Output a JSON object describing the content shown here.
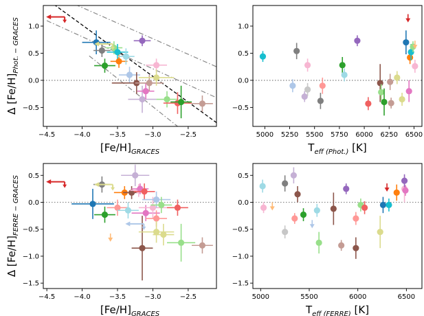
{
  "colors": {
    "blue": "#1f77b4",
    "lightblue": "#aec7e8",
    "orange": "#ff7f0e",
    "peach": "#ffbb78",
    "green": "#2ca02c",
    "lightgreen": "#98df8a",
    "red": "#d62728",
    "salmon": "#ff9896",
    "purple": "#9467bd",
    "lavender": "#c5b0d5",
    "brown": "#8c564b",
    "tan": "#c49c94",
    "pink": "#e377c2",
    "lightpink": "#f7b6d2",
    "gray": "#7f7f7f",
    "lightgray": "#c7c7c7",
    "olive": "#bcbd22",
    "khaki": "#dbdb8d",
    "cyan": "#17becf",
    "lightcyan": "#9edae5",
    "coral": "#f06060",
    "dashed_line": "#000000",
    "dashdot_line": "#888888",
    "zero_line": "#888888"
  },
  "chart_data": [
    {
      "id": "p1",
      "type": "scatter",
      "xlabel": {
        "main": "[Fe/H]",
        "sub": "GRACES"
      },
      "ylabel": {
        "main": "Δ [Fe/H]",
        "sub": "Phot. − GRACES"
      },
      "xlim": [
        -4.55,
        -2.1
      ],
      "ylim": [
        -0.85,
        1.38
      ],
      "xticks": [
        -4.5,
        -4.0,
        -3.5,
        -3.0,
        -2.5
      ],
      "xticklabels": [
        "−4.5",
        "−4.0",
        "−3.5",
        "−3.0",
        "−2.5"
      ],
      "yticks": [
        -0.5,
        0.0,
        0.5,
        1.0
      ],
      "yticklabels": [
        "−0.5",
        "0.0",
        "0.5",
        "1.0"
      ],
      "zero_line": true,
      "lines": [
        {
          "style": "dashed",
          "color": "dashed_line",
          "x1": -4.4,
          "y1": 1.4,
          "x2": -2.1,
          "y2": -0.78
        },
        {
          "style": "dashdot",
          "color": "dashdot_line",
          "x1": -4.5,
          "y1": 1.1,
          "x2": -2.1,
          "y2": -0.32
        },
        {
          "style": "dashdot",
          "color": "dashdot_line",
          "x1": -4.1,
          "y1": 1.4,
          "x2": -2.1,
          "y2": 0.25
        },
        {
          "style": "dashdot",
          "color": "dashdot_line",
          "x1": -3.9,
          "y1": 0.45,
          "x2": -2.65,
          "y2": -0.85
        }
      ],
      "points": [
        {
          "x": -3.8,
          "y": 0.7,
          "xerr": 0.2,
          "yerr": 0.22,
          "c": "blue"
        },
        {
          "x": -3.72,
          "y": 0.55,
          "xerr": 0.12,
          "yerr": 0.12,
          "c": "gray"
        },
        {
          "x": -3.68,
          "y": 0.27,
          "xerr": 0.15,
          "yerr": 0.13,
          "c": "green"
        },
        {
          "x": -3.55,
          "y": 0.6,
          "xerr": 0.12,
          "yerr": 0.12,
          "c": "lightgreen"
        },
        {
          "x": -3.5,
          "y": 0.52,
          "xerr": 0.15,
          "yerr": 0.15,
          "c": "cyan"
        },
        {
          "x": -3.48,
          "y": 0.35,
          "xerr": 0.12,
          "yerr": 0.12,
          "c": "orange"
        },
        {
          "x": -3.38,
          "y": 0.44,
          "xerr": 0.12,
          "yerr": 0.15,
          "c": "lightcyan"
        },
        {
          "x": -3.33,
          "y": 0.1,
          "xerr": 0.15,
          "yerr": 0.15,
          "c": "lightblue"
        },
        {
          "x": -3.23,
          "y": -0.05,
          "xerr": 0.35,
          "yerr": 0.2,
          "c": "brown"
        },
        {
          "x": -3.15,
          "y": 0.73,
          "xerr": 0.12,
          "yerr": 0.1,
          "c": "purple"
        },
        {
          "x": -3.15,
          "y": -0.35,
          "xerr": 0.2,
          "yerr": 0.25,
          "c": "lavender"
        },
        {
          "x": -3.1,
          "y": -0.2,
          "xerr": 0.12,
          "yerr": 0.15,
          "c": "pink"
        },
        {
          "x": -3.05,
          "y": -0.05,
          "xerr": 0.2,
          "yerr": 0.15,
          "c": "tan"
        },
        {
          "x": -2.95,
          "y": 0.28,
          "xerr": 0.15,
          "yerr": 0.12,
          "c": "lightpink"
        },
        {
          "x": -2.95,
          "y": 0.05,
          "xerr": 0.25,
          "yerr": 0.15,
          "c": "khaki"
        },
        {
          "x": -2.8,
          "y": -0.35,
          "xerr": 0.15,
          "yerr": 0.15,
          "c": "lightgreen"
        },
        {
          "x": -2.65,
          "y": -0.42,
          "xerr": 0.2,
          "yerr": 0.2,
          "c": "coral"
        },
        {
          "x": -2.6,
          "y": -0.4,
          "xerr": 0.15,
          "yerr": 0.3,
          "c": "green"
        },
        {
          "x": -2.3,
          "y": -0.43,
          "xerr": 0.15,
          "yerr": 0.15,
          "c": "tan"
        }
      ],
      "limits": [
        {
          "x": -4.5,
          "y": 1.17,
          "dir": "left",
          "c": "red"
        },
        {
          "x": -3.82,
          "y": 0.67,
          "dir": "left",
          "c": "khaki"
        }
      ]
    },
    {
      "id": "p2",
      "type": "scatter",
      "xlabel": {
        "main": "T",
        "sub": "eff (Phot.)",
        "after": " [K]"
      },
      "ylabel": null,
      "xlim": [
        4880,
        6580
      ],
      "ylim": [
        -0.85,
        1.38
      ],
      "xticks": [
        5000,
        5250,
        5500,
        5750,
        6000,
        6250,
        6500
      ],
      "xticklabels": [
        "5000",
        "5250",
        "5500",
        "5750",
        "6000",
        "6250",
        "6500"
      ],
      "yticks": [
        -0.5,
        0.0,
        0.5,
        1.0
      ],
      "yticklabels": [
        "−0.5",
        "0.0",
        "0.5",
        "1.0"
      ],
      "zero_line": true,
      "lines": [],
      "points": [
        {
          "x": 4980,
          "y": 0.44,
          "xerr": 0,
          "yerr": 0.1,
          "c": "cyan"
        },
        {
          "x": 5280,
          "y": -0.1,
          "xerr": 0,
          "yerr": 0.12,
          "c": "lightblue"
        },
        {
          "x": 5320,
          "y": 0.54,
          "xerr": 0,
          "yerr": 0.15,
          "c": "gray"
        },
        {
          "x": 5400,
          "y": -0.3,
          "xerr": 0,
          "yerr": 0.1,
          "c": "lavender"
        },
        {
          "x": 5430,
          "y": 0.28,
          "xerr": 0,
          "yerr": 0.12,
          "c": "lightpink"
        },
        {
          "x": 5430,
          "y": -0.17,
          "xerr": 0,
          "yerr": 0.12,
          "c": "lightgray"
        },
        {
          "x": 5560,
          "y": -0.38,
          "xerr": 0,
          "yerr": 0.15,
          "c": "gray"
        },
        {
          "x": 5580,
          "y": -0.1,
          "xerr": 0,
          "yerr": 0.15,
          "c": "salmon"
        },
        {
          "x": 5780,
          "y": 0.28,
          "xerr": 0,
          "yerr": 0.15,
          "c": "green"
        },
        {
          "x": 5800,
          "y": 0.1,
          "xerr": 0,
          "yerr": 0.12,
          "c": "lightcyan"
        },
        {
          "x": 5930,
          "y": 0.73,
          "xerr": 0,
          "yerr": 0.1,
          "c": "purple"
        },
        {
          "x": 6040,
          "y": -0.43,
          "xerr": 0,
          "yerr": 0.12,
          "c": "coral"
        },
        {
          "x": 6160,
          "y": -0.05,
          "xerr": 0,
          "yerr": 0.35,
          "c": "brown"
        },
        {
          "x": 6170,
          "y": -0.22,
          "xerr": 0,
          "yerr": 0.15,
          "c": "lightgreen"
        },
        {
          "x": 6200,
          "y": -0.4,
          "xerr": 0,
          "yerr": 0.25,
          "c": "green"
        },
        {
          "x": 6260,
          "y": -0.03,
          "xerr": 0,
          "yerr": 0.15,
          "c": "tan"
        },
        {
          "x": 6270,
          "y": -0.42,
          "xerr": 0,
          "yerr": 0.1,
          "c": "tan"
        },
        {
          "x": 6330,
          "y": 0.05,
          "xerr": 0,
          "yerr": 0.12,
          "c": "khaki"
        },
        {
          "x": 6380,
          "y": -0.35,
          "xerr": 0,
          "yerr": 0.12,
          "c": "khaki"
        },
        {
          "x": 6420,
          "y": 0.7,
          "xerr": 0,
          "yerr": 0.22,
          "c": "blue"
        },
        {
          "x": 6450,
          "y": -0.2,
          "xerr": 0,
          "yerr": 0.2,
          "c": "pink"
        },
        {
          "x": 6460,
          "y": 0.42,
          "xerr": 0,
          "yerr": 0.12,
          "c": "orange"
        },
        {
          "x": 6470,
          "y": 0.52,
          "xerr": 0,
          "yerr": 0.15,
          "c": "cyan"
        },
        {
          "x": 6490,
          "y": 0.62,
          "xerr": 0,
          "yerr": 0.1,
          "c": "lightgreen"
        },
        {
          "x": 6510,
          "y": 0.26,
          "xerr": 0,
          "yerr": 0.12,
          "c": "lightpink"
        }
      ],
      "limits": [
        {
          "x": 6440,
          "y": 1.17,
          "dir": "down",
          "c": "red"
        },
        {
          "x": 6510,
          "y": 0.68,
          "dir": "down",
          "c": "peach"
        }
      ]
    },
    {
      "id": "p3",
      "type": "scatter",
      "xlabel": {
        "main": "[Fe/H]",
        "sub": "GRACES"
      },
      "ylabel": {
        "main": "Δ [Fe/H]",
        "sub": "FERRE − GRACES"
      },
      "xlim": [
        -4.55,
        -2.1
      ],
      "ylim": [
        -1.6,
        0.72
      ],
      "xticks": [
        -4.5,
        -4.0,
        -3.5,
        -3.0,
        -2.5
      ],
      "xticklabels": [
        "−4.5",
        "−4.0",
        "−3.5",
        "−3.0",
        "−2.5"
      ],
      "yticks": [
        -1.5,
        -1.0,
        -0.5,
        0.0,
        0.5
      ],
      "yticklabels": [
        "−1.5",
        "−1.0",
        "−0.5",
        "0.0",
        "0.5"
      ],
      "zero_line": true,
      "lines": [],
      "points": [
        {
          "x": -3.85,
          "y": -0.03,
          "xerr": 0.3,
          "yerr": 0.28,
          "c": "blue"
        },
        {
          "x": -3.72,
          "y": 0.33,
          "xerr": 0.12,
          "yerr": 0.15,
          "c": "gray"
        },
        {
          "x": -3.68,
          "y": -0.23,
          "xerr": 0.15,
          "yerr": 0.15,
          "c": "green"
        },
        {
          "x": -3.5,
          "y": -0.1,
          "xerr": 0.15,
          "yerr": 0.15,
          "c": "salmon"
        },
        {
          "x": -3.4,
          "y": 0.18,
          "xerr": 0.15,
          "yerr": 0.12,
          "c": "orange"
        },
        {
          "x": -3.35,
          "y": -0.15,
          "xerr": 0.15,
          "yerr": 0.15,
          "c": "lightcyan"
        },
        {
          "x": -3.3,
          "y": 0.18,
          "xerr": 0.12,
          "yerr": 0.12,
          "c": "brown"
        },
        {
          "x": -3.25,
          "y": 0.5,
          "xerr": 0.2,
          "yerr": 0.2,
          "c": "lavender"
        },
        {
          "x": -3.2,
          "y": 0.22,
          "xerr": 0.12,
          "yerr": 0.12,
          "c": "lightpink"
        },
        {
          "x": -3.18,
          "y": 0.25,
          "xerr": 0.12,
          "yerr": 0.1,
          "c": "pink"
        },
        {
          "x": -3.15,
          "y": -0.85,
          "xerr": 0.15,
          "yerr": 0.6,
          "c": "brown"
        },
        {
          "x": -3.12,
          "y": 0.2,
          "xerr": 0.15,
          "yerr": 0.15,
          "c": "coral"
        },
        {
          "x": -3.1,
          "y": -0.2,
          "xerr": 0.2,
          "yerr": 0.15,
          "c": "pink"
        },
        {
          "x": -3.0,
          "y": -0.1,
          "xerr": 0.2,
          "yerr": 0.2,
          "c": "lightpink"
        },
        {
          "x": -2.95,
          "y": -0.3,
          "xerr": 0.15,
          "yerr": 0.15,
          "c": "salmon"
        },
        {
          "x": -2.95,
          "y": 0.05,
          "xerr": 0.2,
          "yerr": 0.15,
          "c": "lightblue"
        },
        {
          "x": -2.95,
          "y": -0.55,
          "xerr": 0.25,
          "yerr": 0.2,
          "c": "khaki"
        },
        {
          "x": -2.88,
          "y": -0.05,
          "xerr": 0.15,
          "yerr": 0.15,
          "c": "lightgreen"
        },
        {
          "x": -2.85,
          "y": -0.6,
          "xerr": 0.15,
          "yerr": 0.2,
          "c": "khaki"
        },
        {
          "x": -2.65,
          "y": -0.1,
          "xerr": 0.15,
          "yerr": 0.15,
          "c": "coral"
        },
        {
          "x": -2.6,
          "y": -0.75,
          "xerr": 0.2,
          "yerr": 0.35,
          "c": "lightgreen"
        },
        {
          "x": -2.3,
          "y": -0.8,
          "xerr": 0.15,
          "yerr": 0.15,
          "c": "tan"
        }
      ],
      "limits": [
        {
          "x": -4.5,
          "y": 0.38,
          "dir": "left",
          "c": "red"
        },
        {
          "x": -3.82,
          "y": 0.33,
          "dir": "left",
          "c": "khaki"
        },
        {
          "x": -3.6,
          "y": -0.63,
          "dir": "down",
          "c": "peach"
        },
        {
          "x": -3.38,
          "y": -0.4,
          "dir": "left",
          "c": "lightblue"
        }
      ]
    },
    {
      "id": "p4",
      "type": "scatter",
      "xlabel": {
        "main": "T",
        "sub": "eff (FERRE)",
        "after": " [K]"
      },
      "ylabel": null,
      "xlim": [
        4920,
        6660
      ],
      "ylim": [
        -1.6,
        0.72
      ],
      "xticks": [
        5000,
        5500,
        6000,
        6500
      ],
      "xticklabels": [
        "5000",
        "5500",
        "6000",
        "6500"
      ],
      "yticks": [
        -1.5,
        -1.0,
        -0.5,
        0.0,
        0.5
      ],
      "yticklabels": [
        "−1.5",
        "−1.0",
        "−0.5",
        "0.0",
        "0.5"
      ],
      "zero_line": true,
      "lines": [],
      "points": [
        {
          "x": 5020,
          "y": 0.3,
          "xerr": 0.0,
          "yerr": 0.12,
          "c": "lightcyan"
        },
        {
          "x": 5030,
          "y": -0.1,
          "xerr": 0.0,
          "yerr": 0.1,
          "c": "lightpink"
        },
        {
          "x": 5250,
          "y": 0.35,
          "xerr": 0.0,
          "yerr": 0.15,
          "c": "gray"
        },
        {
          "x": 5250,
          "y": -0.55,
          "xerr": 0.0,
          "yerr": 0.12,
          "c": "lightgray"
        },
        {
          "x": 5340,
          "y": 0.5,
          "xerr": 0.0,
          "yerr": 0.15,
          "c": "lavender"
        },
        {
          "x": 5350,
          "y": -0.3,
          "xerr": 0.0,
          "yerr": 0.1,
          "c": "salmon"
        },
        {
          "x": 5380,
          "y": 0.15,
          "xerr": 0.0,
          "yerr": 0.15,
          "c": "brown"
        },
        {
          "x": 5440,
          "y": -0.23,
          "xerr": 0.0,
          "yerr": 0.12,
          "c": "green"
        },
        {
          "x": 5580,
          "y": -0.15,
          "xerr": 0.0,
          "yerr": 0.12,
          "c": "lightcyan"
        },
        {
          "x": 5600,
          "y": -0.75,
          "xerr": 0.0,
          "yerr": 0.2,
          "c": "lightgreen"
        },
        {
          "x": 5750,
          "y": -0.12,
          "xerr": 0.0,
          "yerr": 0.3,
          "c": "brown"
        },
        {
          "x": 5830,
          "y": -0.8,
          "xerr": 0.0,
          "yerr": 0.1,
          "c": "tan"
        },
        {
          "x": 5880,
          "y": 0.25,
          "xerr": 0.0,
          "yerr": 0.1,
          "c": "purple"
        },
        {
          "x": 5980,
          "y": -0.85,
          "xerr": 0.0,
          "yerr": 0.2,
          "c": "brown"
        },
        {
          "x": 5980,
          "y": -0.3,
          "xerr": 0.0,
          "yerr": 0.12,
          "c": "salmon"
        },
        {
          "x": 6030,
          "y": -0.05,
          "xerr": 0.0,
          "yerr": 0.12,
          "c": "lightgreen"
        },
        {
          "x": 6070,
          "y": -0.1,
          "xerr": 0.0,
          "yerr": 0.12,
          "c": "coral"
        },
        {
          "x": 6230,
          "y": -0.55,
          "xerr": 0.0,
          "yerr": 0.3,
          "c": "khaki"
        },
        {
          "x": 6260,
          "y": -0.05,
          "xerr": 0.0,
          "yerr": 0.15,
          "c": "blue"
        },
        {
          "x": 6320,
          "y": -0.05,
          "xerr": 0.0,
          "yerr": 0.12,
          "c": "cyan"
        },
        {
          "x": 6400,
          "y": 0.18,
          "xerr": 0.0,
          "yerr": 0.15,
          "c": "orange"
        },
        {
          "x": 6480,
          "y": 0.25,
          "xerr": 0.0,
          "yerr": 0.25,
          "c": "lightpink"
        },
        {
          "x": 6490,
          "y": 0.22,
          "xerr": 0.0,
          "yerr": 0.1,
          "c": "pink"
        },
        {
          "x": 6480,
          "y": 0.4,
          "xerr": 0.0,
          "yerr": 0.12,
          "c": "purple"
        }
      ],
      "limits": [
        {
          "x": 5120,
          "y": -0.05,
          "dir": "down",
          "c": "peach"
        },
        {
          "x": 5530,
          "y": -0.38,
          "dir": "down",
          "c": "lightblue"
        },
        {
          "x": 6300,
          "y": 0.3,
          "dir": "down",
          "c": "red"
        }
      ]
    }
  ]
}
